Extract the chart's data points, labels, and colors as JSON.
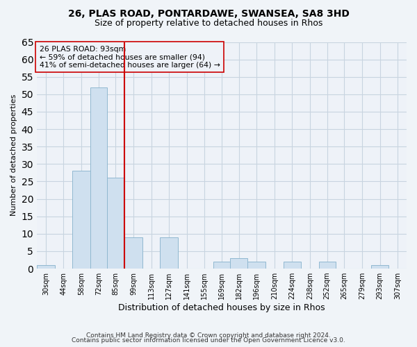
{
  "title1": "26, PLAS ROAD, PONTARDAWE, SWANSEA, SA8 3HD",
  "title2": "Size of property relative to detached houses in Rhos",
  "xlabel": "Distribution of detached houses by size in Rhos",
  "ylabel": "Number of detached properties",
  "footer1": "Contains HM Land Registry data © Crown copyright and database right 2024.",
  "footer2": "Contains public sector information licensed under the Open Government Licence v3.0.",
  "bin_edges": [
    23,
    37,
    51,
    65,
    78,
    92,
    106,
    120,
    134,
    148,
    162,
    175,
    189,
    203,
    217,
    231,
    245,
    258,
    272,
    286,
    300,
    314
  ],
  "bin_labels": [
    "30sqm",
    "44sqm",
    "58sqm",
    "72sqm",
    "85sqm",
    "99sqm",
    "113sqm",
    "127sqm",
    "141sqm",
    "155sqm",
    "169sqm",
    "182sqm",
    "196sqm",
    "210sqm",
    "224sqm",
    "238sqm",
    "252sqm",
    "265sqm",
    "279sqm",
    "293sqm",
    "307sqm"
  ],
  "counts": [
    1,
    0,
    28,
    52,
    26,
    9,
    0,
    9,
    0,
    0,
    2,
    3,
    2,
    0,
    2,
    0,
    2,
    0,
    0,
    1,
    0
  ],
  "bar_color": "#cfe0ef",
  "bar_edge_color": "#90b8d0",
  "vline_x": 92,
  "vline_color": "#cc0000",
  "annotation_text": "26 PLAS ROAD: 93sqm\n← 59% of detached houses are smaller (94)\n41% of semi-detached houses are larger (64) →",
  "annotation_box_edge": "#cc0000",
  "ylim": [
    0,
    65
  ],
  "yticks": [
    0,
    5,
    10,
    15,
    20,
    25,
    30,
    35,
    40,
    45,
    50,
    55,
    60,
    65
  ],
  "grid_color": "#c8d4e0",
  "background_color": "#f0f4f8",
  "plot_bg_color": "#eef2f8"
}
